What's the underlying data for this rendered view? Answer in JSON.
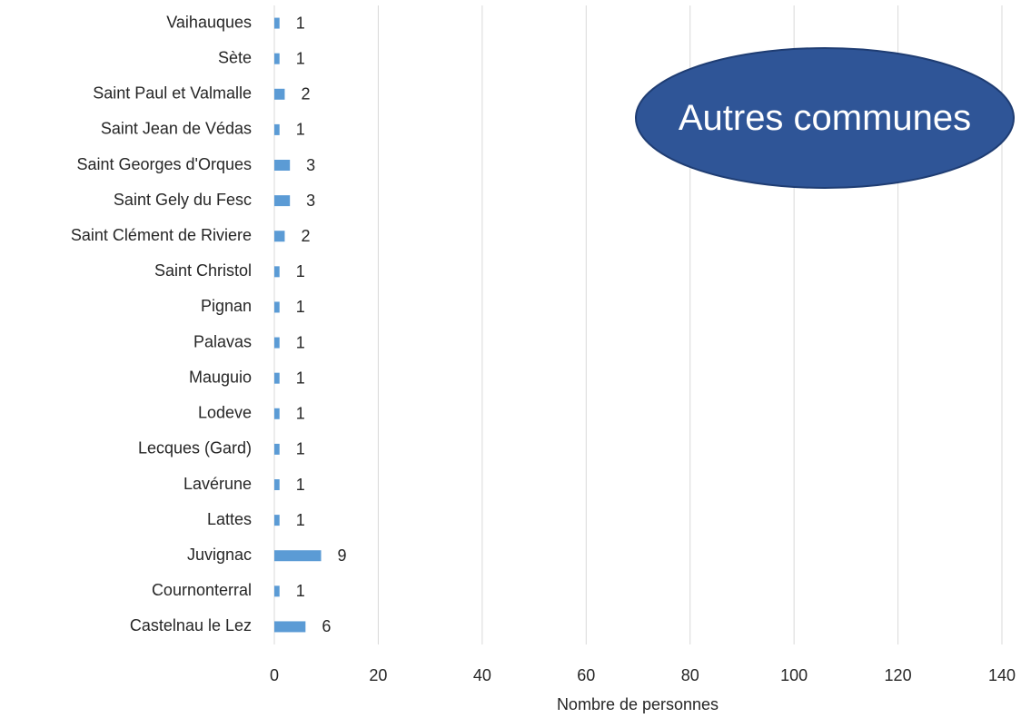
{
  "chart_data": {
    "type": "hbar",
    "categories": [
      "Castelnau le Lez",
      "Cournonterral",
      "Juvignac",
      "Lattes",
      "Lavérune",
      "Lecques (Gard)",
      "Lodeve",
      "Mauguio",
      "Palavas",
      "Pignan",
      "Saint Christol",
      "Saint Clément de Riviere",
      "Saint Gely du Fesc",
      "Saint Georges d'Orques",
      "Saint Jean de Védas",
      "Saint Paul et Valmalle",
      "Sète",
      "Vaihauques"
    ],
    "values": [
      6,
      1,
      9,
      1,
      1,
      1,
      1,
      1,
      1,
      1,
      1,
      2,
      3,
      3,
      1,
      2,
      1,
      1
    ],
    "color": "#5b9bd5",
    "xlim": [
      0,
      140
    ],
    "xticks": [
      0,
      20,
      40,
      60,
      80,
      100,
      120,
      140
    ],
    "xlabel": "Nombre de personnes",
    "grid": true,
    "annotation": "Autres communes"
  }
}
